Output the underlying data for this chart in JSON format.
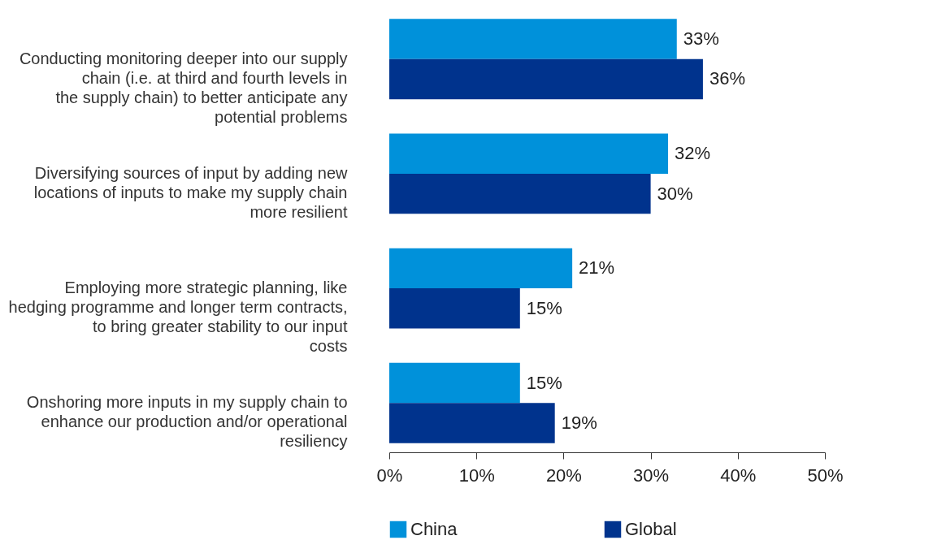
{
  "chart_data": {
    "type": "bar",
    "orientation": "horizontal",
    "categories": [
      "Conducting monitoring deeper into our supply chain (i.e. at third and fourth levels in the supply chain) to better anticipate any potential problems",
      "Diversifying sources of input by adding new locations of inputs to make my supply chain more resilient",
      "Employing more strategic planning, like hedging programme and longer term contracts, to bring greater stability to our input costs",
      "Onshoring more inputs in my supply chain to enhance our production and/or operational resiliency"
    ],
    "series": [
      {
        "name": "China",
        "color": "#0091da",
        "values": [
          33,
          32,
          21,
          15
        ],
        "value_labels": [
          "33%",
          "32%",
          "21%",
          "15%"
        ]
      },
      {
        "name": "Global",
        "color": "#00338d",
        "values": [
          36,
          30,
          15,
          19
        ],
        "value_labels": [
          "36%",
          "30%",
          "15%",
          "19%"
        ]
      }
    ],
    "xlim": [
      0,
      50
    ],
    "xticks": [
      {
        "value": 0,
        "label": "0%"
      },
      {
        "value": 10,
        "label": "10%"
      },
      {
        "value": 20,
        "label": "20%"
      },
      {
        "value": 30,
        "label": "30%"
      },
      {
        "value": 40,
        "label": "40%"
      },
      {
        "value": 50,
        "label": "50%"
      }
    ],
    "grid": false,
    "legend": "bottom"
  }
}
